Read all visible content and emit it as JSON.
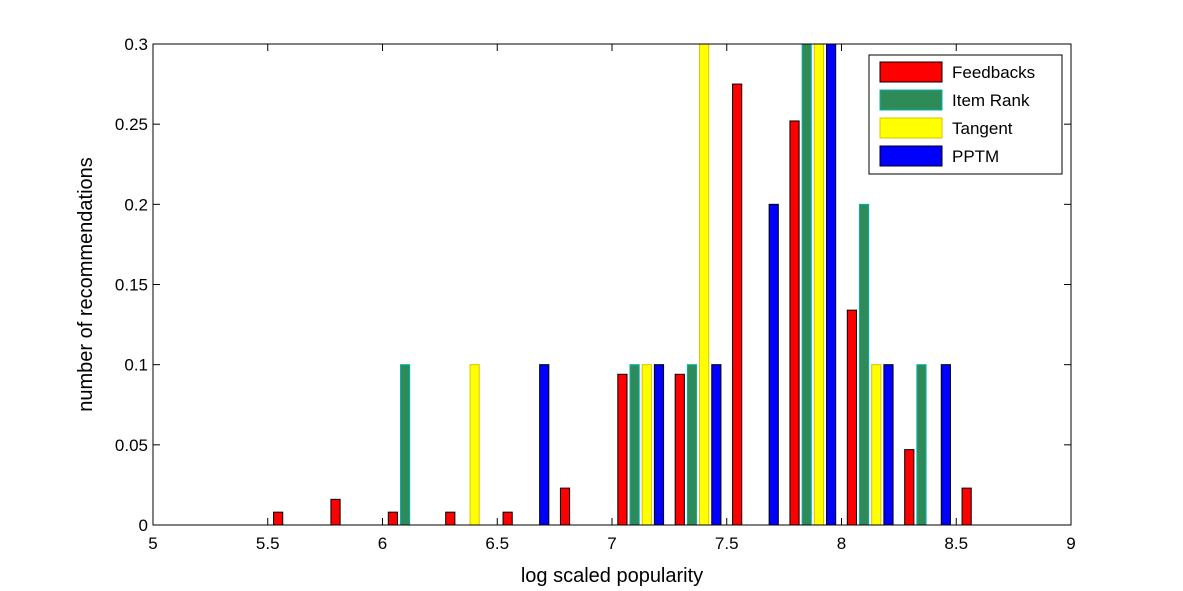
{
  "chart_data": {
    "type": "bar",
    "title": "",
    "xlabel": "log scaled popularity",
    "ylabel": "number of recommendations",
    "xlim": [
      5,
      9
    ],
    "ylim": [
      0,
      0.3
    ],
    "xticks": [
      "5",
      "5.5",
      "6",
      "6.5",
      "7",
      "7.5",
      "8",
      "8.5",
      "9"
    ],
    "yticks": [
      "0",
      "0.05",
      "0.1",
      "0.15",
      "0.2",
      "0.25",
      "0.3"
    ],
    "legend_position": "top-right",
    "grid": false,
    "bin_centers": [
      5.125,
      5.375,
      5.625,
      5.875,
      6.125,
      6.375,
      6.625,
      6.875,
      7.125,
      7.375,
      7.625,
      7.875,
      8.125,
      8.375,
      8.625,
      8.875
    ],
    "series": [
      {
        "name": "Feedbacks",
        "color": "#ff0000",
        "edge": "#000000",
        "values": [
          0,
          0,
          0.008,
          0.016,
          0.008,
          0.008,
          0.008,
          0.023,
          0.094,
          0.094,
          0.275,
          0.252,
          0.134,
          0.047,
          0.023,
          0
        ]
      },
      {
        "name": "Item Rank",
        "color": "#2e8b57",
        "edge": "#00b2b2",
        "values": [
          0,
          0,
          0,
          0,
          0.1,
          0,
          0,
          0,
          0.1,
          0.1,
          0,
          0.3,
          0.2,
          0.1,
          0,
          0
        ]
      },
      {
        "name": "Tangent",
        "color": "#ffff00",
        "edge": "#e0c000",
        "values": [
          0,
          0,
          0,
          0,
          0,
          0.1,
          0,
          0,
          0.1,
          0.3,
          0,
          0.3,
          0.1,
          0,
          0,
          0
        ]
      },
      {
        "name": "PPTM",
        "color": "#0000ff",
        "edge": "#000000",
        "values": [
          0,
          0,
          0,
          0,
          0,
          0,
          0.1,
          0,
          0.1,
          0.1,
          0.2,
          0.3,
          0.1,
          0.1,
          0,
          0
        ]
      }
    ]
  }
}
